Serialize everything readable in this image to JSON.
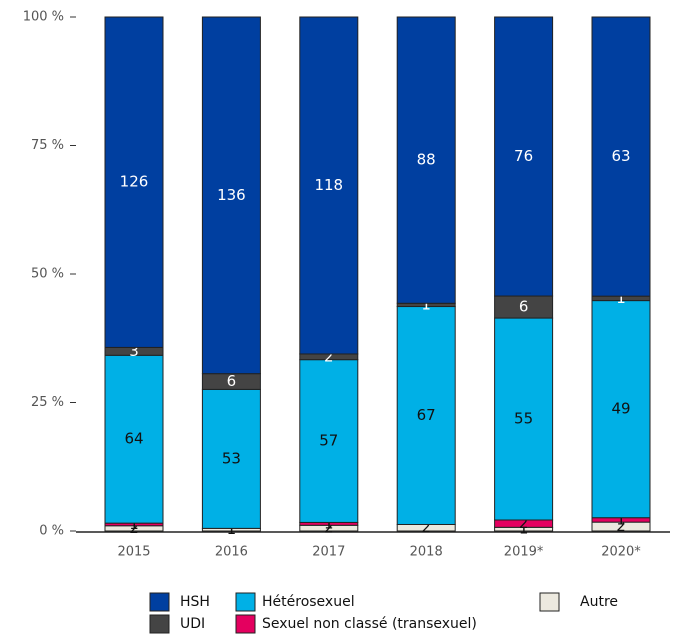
{
  "chart_data": {
    "type": "bar",
    "stacked": "percent",
    "categories": [
      "2015",
      "2016",
      "2017",
      "2018",
      "2019*",
      "2020*"
    ],
    "series": [
      {
        "name": "Autre",
        "color": "#ece9df",
        "label_color": "#111111",
        "values": [
          2,
          1,
          2,
          2,
          1,
          2
        ]
      },
      {
        "name": "Sexuel non classé (transexuel)",
        "color": "#e4005f",
        "label_color": "#111111",
        "values": [
          1,
          0,
          1,
          0,
          2,
          1
        ]
      },
      {
        "name": "Hétérosexuel",
        "color": "#00b0e6",
        "label_color": "#111111",
        "values": [
          64,
          53,
          57,
          67,
          55,
          49
        ]
      },
      {
        "name": "UDI",
        "color": "#444444",
        "label_color": "#ffffff",
        "values": [
          3,
          6,
          2,
          1,
          6,
          1
        ]
      },
      {
        "name": "HSH",
        "color": "#003fa0",
        "label_color": "#ffffff",
        "values": [
          126,
          136,
          118,
          88,
          76,
          63
        ]
      }
    ],
    "ylim": [
      0,
      100
    ],
    "yticks": [
      {
        "value": 0,
        "label": "0 %"
      },
      {
        "value": 25,
        "label": "25 %"
      },
      {
        "value": 50,
        "label": "50 %"
      },
      {
        "value": 75,
        "label": "75 %"
      },
      {
        "value": 100,
        "label": "100 %"
      }
    ]
  }
}
